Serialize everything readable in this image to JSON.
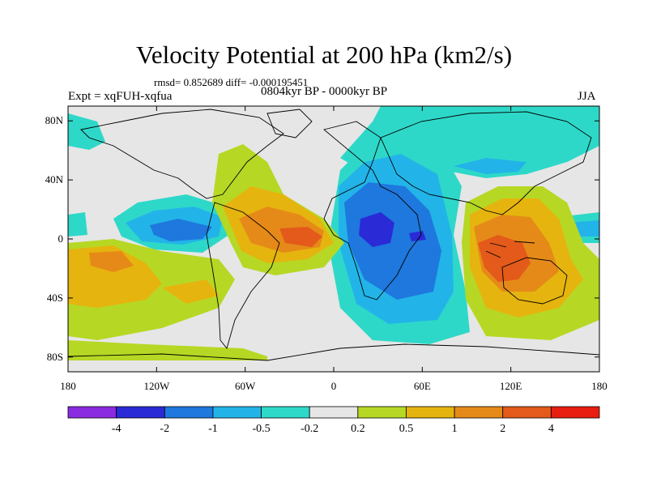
{
  "title": "Velocity Potential at 200 hPa (km2/s)",
  "stats": "rmsd= 0.852689 diff= -0.000195451",
  "experiment": "Expt = xqFUH-xqfua",
  "period": "0804kyr BP - 0000kyr BP",
  "season": "JJA",
  "map": {
    "projection": "cylindrical-equidistant",
    "lon_range": [
      -180,
      180
    ],
    "lat_range": [
      -90,
      90
    ],
    "y_ticks": [
      {
        "label": "80N",
        "lat": 80
      },
      {
        "label": "40N",
        "lat": 40
      },
      {
        "label": "0",
        "lat": 0
      },
      {
        "label": "40S",
        "lat": -40
      },
      {
        "label": "80S",
        "lat": -80
      }
    ],
    "x_ticks": [
      {
        "label": "180",
        "lon": -180
      },
      {
        "label": "120W",
        "lon": -120
      },
      {
        "label": "60W",
        "lon": -60
      },
      {
        "label": "0",
        "lon": 0
      },
      {
        "label": "60E",
        "lon": 60
      },
      {
        "label": "120E",
        "lon": 120
      },
      {
        "label": "180",
        "lon": 180
      }
    ],
    "background_color": "#e6e6e6"
  },
  "colorbar": {
    "colors": [
      "#8a2be2",
      "#2a2ad6",
      "#1e78dd",
      "#22b4e8",
      "#2ed8c8",
      "#e6e6e6",
      "#b6d824",
      "#e6b40e",
      "#e58a18",
      "#e35a1a",
      "#e81e10"
    ],
    "labels": [
      "-4",
      "-2",
      "-1",
      "-0.5",
      "-0.2",
      "0.2",
      "0.5",
      "1",
      "2",
      "4"
    ]
  }
}
